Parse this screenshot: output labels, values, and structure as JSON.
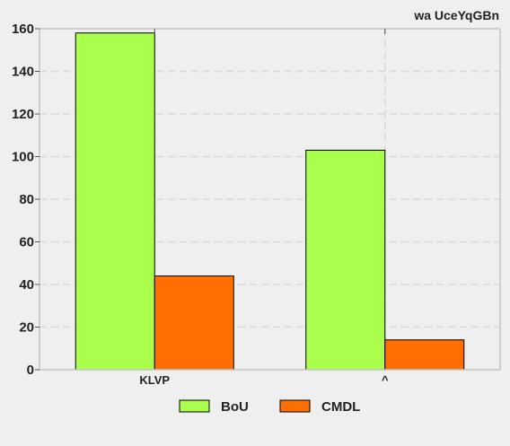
{
  "chart_data": {
    "type": "bar",
    "title": "wa  UceYqGBn",
    "categories": [
      "KLVP",
      "^"
    ],
    "series": [
      {
        "name": "BoU",
        "color": "#aaff4d",
        "values": [
          158,
          103
        ]
      },
      {
        "name": "CMDL",
        "color": "#ff6e00",
        "values": [
          44,
          14
        ]
      }
    ],
    "ylim": [
      0,
      160
    ],
    "yticks": [
      0,
      20,
      40,
      60,
      80,
      100,
      120,
      140,
      160
    ],
    "grid": true,
    "legend": "bottom-center",
    "colors": {
      "background": "#efefef",
      "grid": "#d8d8d8",
      "axis": "#c4c4c4",
      "bar_edge": "#000000"
    }
  }
}
